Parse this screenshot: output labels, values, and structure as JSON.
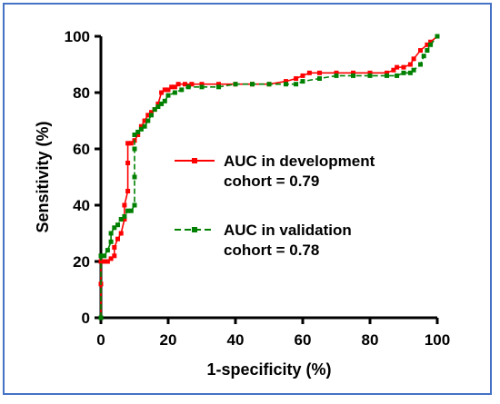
{
  "chart_data": {
    "type": "line",
    "title": "",
    "xlabel": "1-specificity (%)",
    "ylabel": "Sensitivity (%)",
    "xlim": [
      0,
      100
    ],
    "ylim": [
      0,
      100
    ],
    "xticks": [
      "0",
      "20",
      "40",
      "60",
      "80",
      "100"
    ],
    "yticks": [
      "0",
      "20",
      "40",
      "60",
      "80",
      "100"
    ],
    "grid": false,
    "legend_position": "right-center",
    "series": [
      {
        "name": "AUC in development cohort = 0.79",
        "legend_lines": [
          "AUC in development",
          "cohort = 0.79"
        ],
        "color": "#ff0000",
        "line_style": "solid",
        "marker": "square",
        "points": [
          [
            0,
            0
          ],
          [
            0,
            12
          ],
          [
            0,
            20
          ],
          [
            1,
            20
          ],
          [
            2,
            20
          ],
          [
            3,
            21
          ],
          [
            4,
            22
          ],
          [
            4,
            25
          ],
          [
            5,
            28
          ],
          [
            6,
            30
          ],
          [
            7,
            35
          ],
          [
            7,
            40
          ],
          [
            8,
            45
          ],
          [
            8,
            55
          ],
          [
            8,
            62
          ],
          [
            9,
            62
          ],
          [
            10,
            63
          ],
          [
            11,
            65
          ],
          [
            12,
            68
          ],
          [
            13,
            70
          ],
          [
            14,
            72
          ],
          [
            15,
            73
          ],
          [
            16,
            74
          ],
          [
            17,
            76
          ],
          [
            18,
            80
          ],
          [
            19,
            81
          ],
          [
            20,
            81
          ],
          [
            21,
            82
          ],
          [
            22,
            82
          ],
          [
            23,
            83
          ],
          [
            25,
            83
          ],
          [
            27,
            83
          ],
          [
            30,
            83
          ],
          [
            35,
            83
          ],
          [
            40,
            83
          ],
          [
            45,
            83
          ],
          [
            50,
            83
          ],
          [
            55,
            84
          ],
          [
            58,
            85
          ],
          [
            60,
            86
          ],
          [
            62,
            87
          ],
          [
            65,
            87
          ],
          [
            70,
            87
          ],
          [
            75,
            87
          ],
          [
            80,
            87
          ],
          [
            85,
            87
          ],
          [
            87,
            88
          ],
          [
            88,
            89
          ],
          [
            90,
            89
          ],
          [
            92,
            90
          ],
          [
            93,
            92
          ],
          [
            95,
            95
          ],
          [
            97,
            97
          ],
          [
            98,
            98
          ],
          [
            100,
            100
          ]
        ]
      },
      {
        "name": "AUC in validation cohort = 0.78",
        "legend_lines": [
          "AUC in validation",
          "cohort = 0.78"
        ],
        "color": "#008000",
        "line_style": "dashed",
        "marker": "square",
        "points": [
          [
            0,
            0
          ],
          [
            0,
            22
          ],
          [
            1,
            22
          ],
          [
            2,
            24
          ],
          [
            3,
            27
          ],
          [
            3,
            30
          ],
          [
            4,
            32
          ],
          [
            5,
            33
          ],
          [
            6,
            35
          ],
          [
            7,
            36
          ],
          [
            8,
            38
          ],
          [
            9,
            38
          ],
          [
            10,
            40
          ],
          [
            10,
            50
          ],
          [
            10,
            60
          ],
          [
            10,
            65
          ],
          [
            11,
            66
          ],
          [
            12,
            67
          ],
          [
            13,
            68
          ],
          [
            14,
            70
          ],
          [
            15,
            72
          ],
          [
            16,
            74
          ],
          [
            17,
            75
          ],
          [
            18,
            76
          ],
          [
            19,
            77
          ],
          [
            20,
            79
          ],
          [
            22,
            80
          ],
          [
            24,
            81
          ],
          [
            26,
            82
          ],
          [
            30,
            82
          ],
          [
            35,
            82
          ],
          [
            40,
            83
          ],
          [
            45,
            83
          ],
          [
            50,
            83
          ],
          [
            55,
            83
          ],
          [
            58,
            83
          ],
          [
            60,
            84
          ],
          [
            65,
            85
          ],
          [
            70,
            86
          ],
          [
            75,
            86
          ],
          [
            80,
            86
          ],
          [
            85,
            86
          ],
          [
            88,
            86
          ],
          [
            90,
            87
          ],
          [
            92,
            87
          ],
          [
            93,
            88
          ],
          [
            95,
            90
          ],
          [
            96,
            93
          ],
          [
            97,
            95
          ],
          [
            98,
            97
          ],
          [
            100,
            100
          ]
        ]
      }
    ]
  }
}
